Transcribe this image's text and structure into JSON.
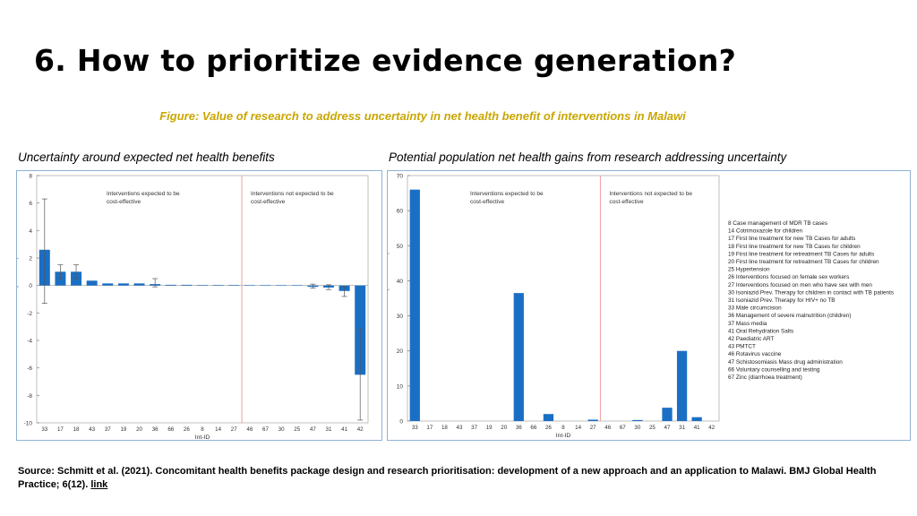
{
  "slide": {
    "title": "6. How to prioritize evidence generation?",
    "figure_caption": "Figure: Value of research to address uncertainty in net health benefit of interventions in Malawi",
    "left_caption": "Uncertainty around expected net health benefits",
    "right_caption": "Potential population net health gains from research addressing uncertainty",
    "source_text": "Source: Schmitt et al. (2021). Concomitant health benefits package design and research prioritisation: development of a new approach and an application to Malawi. BMJ Global Health Practice; 6(12).",
    "source_link": "link"
  },
  "colors": {
    "bar": "#1a6fc4",
    "divider": "#f0a0a0",
    "axis": "#888888",
    "caption_gold": "#c9a600"
  },
  "chart_data": [
    {
      "type": "bar",
      "categories": [
        "33",
        "17",
        "18",
        "43",
        "37",
        "19",
        "20",
        "36",
        "66",
        "26",
        "8",
        "14",
        "27",
        "46",
        "67",
        "30",
        "25",
        "47",
        "31",
        "41",
        "42"
      ],
      "values": [
        2.6,
        1.0,
        1.0,
        0.35,
        0.15,
        0.15,
        0.15,
        0.1,
        0.05,
        0.05,
        0.03,
        0.03,
        0.03,
        0.02,
        0.02,
        0.02,
        0.02,
        -0.1,
        -0.15,
        -0.4,
        -6.5
      ],
      "error_low": [
        -1.3,
        0.5,
        0.5,
        null,
        null,
        null,
        null,
        -0.1,
        null,
        null,
        null,
        null,
        null,
        null,
        null,
        null,
        null,
        -0.2,
        -0.3,
        -0.8,
        -9.8
      ],
      "error_high": [
        6.3,
        1.5,
        1.5,
        null,
        null,
        null,
        null,
        0.5,
        null,
        null,
        null,
        null,
        null,
        null,
        null,
        null,
        null,
        0.1,
        0.05,
        -0.1,
        -3.2
      ],
      "ylim": [
        -10,
        8
      ],
      "yticks": [
        -10,
        -8,
        -6,
        -4,
        -2,
        0,
        2,
        4,
        6,
        8
      ],
      "xlabel": "Int-ID",
      "ylabel": "Net averted DALYs (in millions)",
      "divider_after_index": 12,
      "region_left_label": [
        "Interventions expected to be",
        "cost-effective"
      ],
      "region_right_label": [
        "Interventions not expected to be",
        "cost-effective"
      ]
    },
    {
      "type": "bar",
      "categories": [
        "33",
        "17",
        "18",
        "43",
        "37",
        "19",
        "20",
        "36",
        "66",
        "26",
        "8",
        "14",
        "27",
        "46",
        "67",
        "30",
        "25",
        "47",
        "31",
        "41",
        "42"
      ],
      "values": [
        66,
        0,
        0,
        0,
        0,
        0,
        0,
        36.5,
        0,
        2,
        0,
        0,
        0.4,
        0,
        0,
        0.3,
        0,
        3.8,
        20,
        1.1,
        0
      ],
      "ylim": [
        0,
        70
      ],
      "yticks": [
        0,
        10,
        20,
        30,
        40,
        50,
        60,
        70
      ],
      "xlabel": "Int-ID",
      "ylabel": "Net averted DALYs (in thousands)",
      "divider_after_index": 12,
      "region_left_label": [
        "Interventions expected to be",
        "cost-effective"
      ],
      "region_right_label": [
        "Interventions not expected to be",
        "cost-effective"
      ],
      "legend_position": "right",
      "legend": [
        "8 Case management  of MDR TB cases",
        "14 Cotrimoxazole for children",
        "17 First line treatment  for new TB Cases for adults",
        "18 First line treatment  for new TB Cases for children",
        "19 First line treatment  for retreatment TB Cases for adults",
        "20 First line treatment  for retreatment TB Cases for children",
        "25 Hypertension",
        "26 Interventions focused on female sex workers",
        "27 Interventions focused on men  who have sex with men",
        "30 Isoniazid Prev. Therapy for children in contact with TB patients",
        "31 Isoniazid Prev. Therapy for HIV+ no TB",
        "33 Male  circumcision",
        "36 Management  of severe malnutrition  (children)",
        "37 Mass media",
        "41 Oral Rehydration Salts",
        "42 Paediatric ART",
        "43 PMTCT",
        "46 Rotavirus vaccine",
        "47 Schistosomiasis Mass drug administration",
        "66 Voluntary counselling and testing",
        "67 Zinc (diarrhoea treatment)"
      ]
    }
  ]
}
